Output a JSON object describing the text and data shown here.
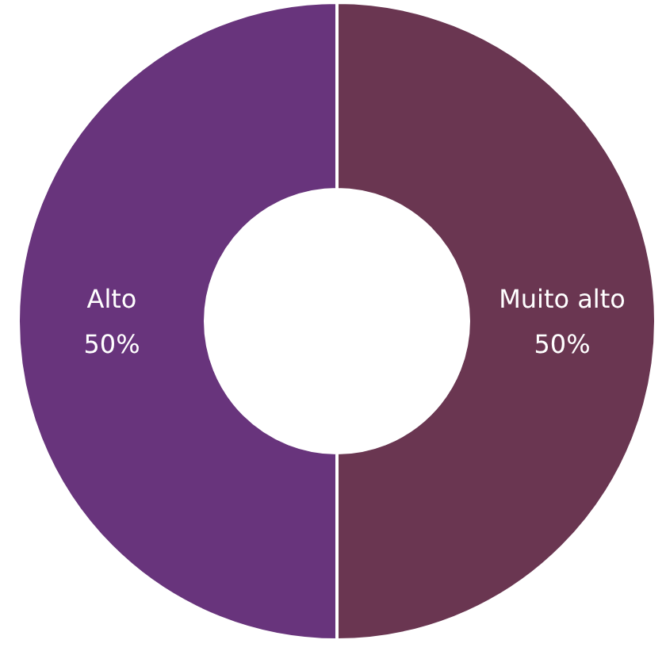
{
  "chart_data": {
    "type": "donut",
    "categories": [
      "Muito alto",
      "Alto"
    ],
    "values": [
      50,
      50
    ],
    "colors": [
      "#6a3651",
      "#68347c"
    ],
    "value_labels": [
      "50%",
      "50%"
    ]
  }
}
